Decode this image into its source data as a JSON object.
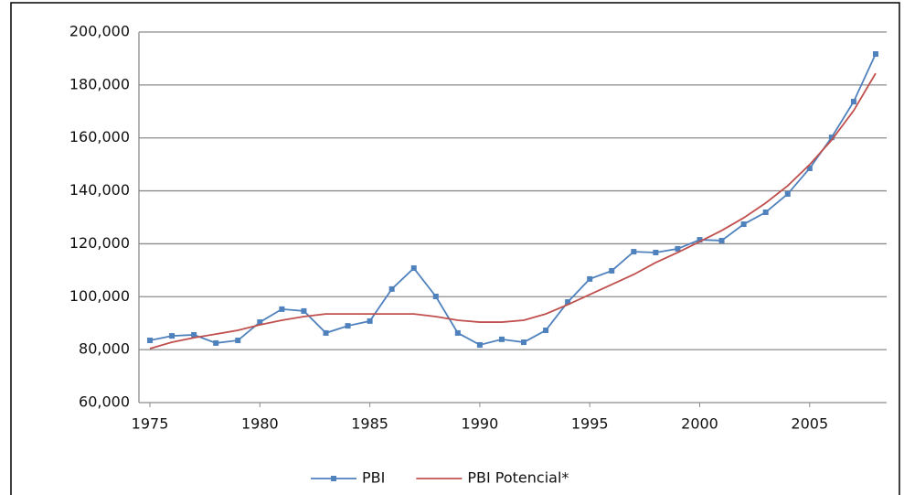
{
  "chart_data": {
    "type": "line",
    "x": [
      1975,
      1976,
      1977,
      1978,
      1979,
      1980,
      1981,
      1982,
      1983,
      1984,
      1985,
      1986,
      1987,
      1988,
      1989,
      1990,
      1991,
      1992,
      1993,
      1994,
      1995,
      1996,
      1997,
      1998,
      1999,
      2000,
      2001,
      2002,
      2003,
      2004,
      2005,
      2006,
      2007,
      2008
    ],
    "series": [
      {
        "name": "PBI",
        "color": "#4f81bd",
        "marker": true,
        "values": [
          83500,
          85200,
          85600,
          82500,
          83500,
          90400,
          95300,
          94600,
          86300,
          89000,
          90800,
          102900,
          110800,
          100100,
          86300,
          81800,
          83900,
          82800,
          87300,
          98000,
          106700,
          109800,
          117000,
          116700,
          118100,
          121500,
          121200,
          127400,
          131900,
          138800,
          148500,
          160200,
          173700,
          191700
        ]
      },
      {
        "name": "PBI Potencial*",
        "color": "#c0504d",
        "marker": false,
        "values": [
          80400,
          82800,
          84500,
          85900,
          87300,
          89400,
          91100,
          92500,
          93500,
          93500,
          93500,
          93500,
          93500,
          92500,
          91100,
          90400,
          90400,
          91100,
          93500,
          97000,
          100800,
          104600,
          108400,
          112900,
          116700,
          120800,
          125000,
          129800,
          135400,
          141900,
          149900,
          159200,
          170300,
          184400
        ]
      }
    ],
    "xlim": [
      1974.5,
      2008.5
    ],
    "xticks": [
      1975,
      1980,
      1985,
      1990,
      1995,
      2000,
      2005
    ],
    "ylim": [
      60000,
      200000
    ],
    "yticks": [
      {
        "value": 60000,
        "label": "60,000"
      },
      {
        "value": 80000,
        "label": "80,000"
      },
      {
        "value": 100000,
        "label": "100,000"
      },
      {
        "value": 120000,
        "label": "120,000"
      },
      {
        "value": 140000,
        "label": "140,000"
      },
      {
        "value": 160000,
        "label": "160,000"
      },
      {
        "value": 180000,
        "label": "180,000"
      },
      {
        "value": 200000,
        "label": "200,000"
      }
    ],
    "grid": true,
    "legend": "bottom"
  }
}
